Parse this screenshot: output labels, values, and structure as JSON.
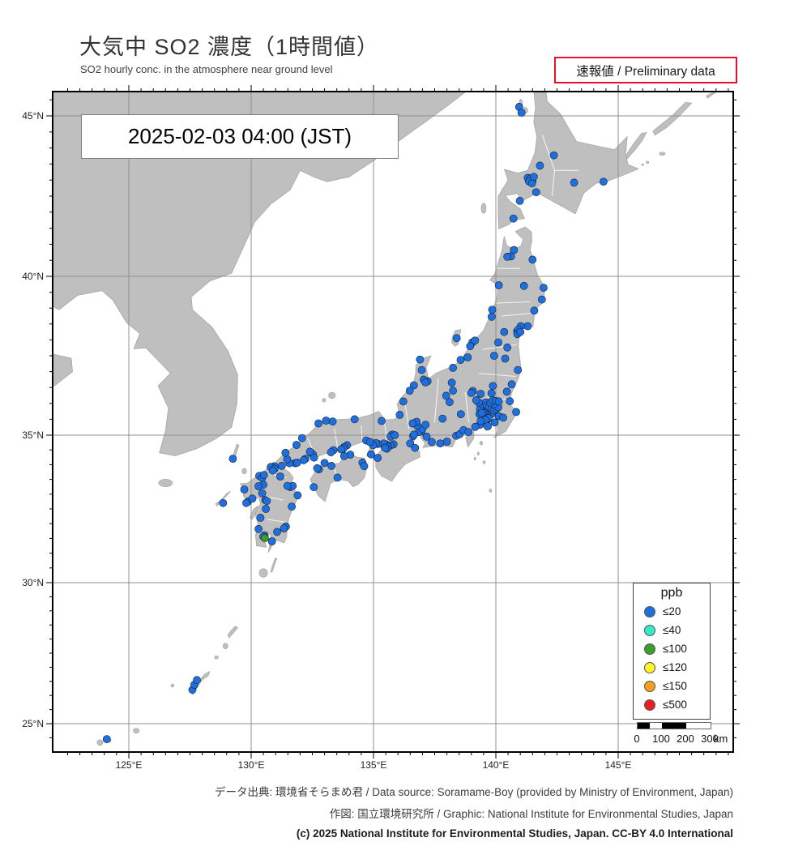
{
  "header": {
    "title": "大気中 SO2 濃度（1時間値）",
    "subtitle": "SO2 hourly conc. in the atmosphere near ground level",
    "preliminary": "速報値 / Preliminary data"
  },
  "map": {
    "timestamp": "2025-02-03  04:00 (JST)",
    "lat_labels": [
      {
        "label": "45°N",
        "lat": 45
      },
      {
        "label": "40°N",
        "lat": 40
      },
      {
        "label": "35°N",
        "lat": 35
      },
      {
        "label": "30°N",
        "lat": 30
      },
      {
        "label": "25°N",
        "lat": 25
      }
    ],
    "lon_labels": [
      {
        "label": "125°E",
        "lon": 125
      },
      {
        "label": "130°E",
        "lon": 130
      },
      {
        "label": "135°E",
        "lon": 135
      },
      {
        "label": "140°E",
        "lon": 140
      },
      {
        "label": "145°E",
        "lon": 145
      }
    ]
  },
  "legend": {
    "title": "ppb",
    "items": [
      {
        "label": "≤20",
        "color": "#1e6fe0"
      },
      {
        "label": "≤40",
        "color": "#35e8c8"
      },
      {
        "label": "≤100",
        "color": "#3aa02a"
      },
      {
        "label": "≤120",
        "color": "#fff32a"
      },
      {
        "label": "≤150",
        "color": "#f4a01c"
      },
      {
        "label": "≤500",
        "color": "#ec1c24"
      }
    ]
  },
  "scalebar": {
    "labels": [
      "0",
      "100",
      "200",
      "300"
    ],
    "unit": "km"
  },
  "footer": {
    "line1": "データ出典: 環境省そらまめ君 / Data source: Soramame-Boy (provided by Ministry of Environment, Japan)",
    "line2": "作図: 国立環境研究所 / Graphic: National Institute for Environmental Studies, Japan",
    "line3": "(c) 2025 National Institute for Environmental Studies, Japan. CC-BY 4.0 International"
  },
  "chart_data": {
    "type": "scatter",
    "title": "大気中 SO2 濃度（1時間値）",
    "unit": "ppb",
    "timestamp": "2025-02-03 04:00 (JST)",
    "lon_range": [
      121.9,
      149.7
    ],
    "lat_range": [
      23.9,
      45.77
    ],
    "grid": "on",
    "legend_position": "bottom-right",
    "thresholds": [
      {
        "label": "≤20",
        "color": "#1e6fe0"
      },
      {
        "label": "≤40",
        "color": "#35e8c8"
      },
      {
        "label": "≤100",
        "color": "#3aa02a"
      },
      {
        "label": "≤120",
        "color": "#fff32a"
      },
      {
        "label": "≤150",
        "color": "#f4a01c"
      },
      {
        "label": "≤500",
        "color": "#ec1c24"
      }
    ],
    "stations": {
      "le20": [
        [
          140.95,
          45.28
        ],
        [
          141.05,
          45.1
        ],
        [
          141.8,
          43.45
        ],
        [
          142.37,
          43.77
        ],
        [
          141.3,
          43.07
        ],
        [
          141.42,
          43.05
        ],
        [
          141.5,
          42.98
        ],
        [
          141.35,
          42.96
        ],
        [
          141.48,
          42.9
        ],
        [
          141.55,
          43.1
        ],
        [
          141.65,
          42.62
        ],
        [
          140.98,
          42.35
        ],
        [
          140.72,
          41.8
        ],
        [
          144.4,
          42.95
        ],
        [
          143.2,
          42.92
        ],
        [
          140.74,
          40.82
        ],
        [
          140.62,
          40.62
        ],
        [
          141.5,
          40.52
        ],
        [
          140.47,
          40.61
        ],
        [
          140.12,
          39.72
        ],
        [
          141.15,
          39.7
        ],
        [
          141.95,
          39.64
        ],
        [
          141.88,
          39.27
        ],
        [
          141.57,
          38.92
        ],
        [
          141.3,
          38.43
        ],
        [
          141.02,
          38.43
        ],
        [
          140.87,
          38.27
        ],
        [
          140.93,
          38.33
        ],
        [
          140.88,
          38.18
        ],
        [
          141.0,
          38.25
        ],
        [
          140.34,
          38.25
        ],
        [
          139.83,
          38.73
        ],
        [
          139.85,
          38.95
        ],
        [
          140.1,
          37.92
        ],
        [
          140.47,
          37.76
        ],
        [
          140.38,
          37.41
        ],
        [
          139.93,
          37.5
        ],
        [
          140.9,
          37.05
        ],
        [
          139.04,
          37.92
        ],
        [
          139.15,
          37.98
        ],
        [
          138.95,
          37.8
        ],
        [
          138.4,
          38.05
        ],
        [
          138.85,
          37.45
        ],
        [
          138.56,
          37.37
        ],
        [
          138.25,
          37.12
        ],
        [
          137.21,
          36.7
        ],
        [
          137.05,
          36.75
        ],
        [
          137.12,
          36.66
        ],
        [
          136.65,
          36.57
        ],
        [
          136.48,
          36.4
        ],
        [
          136.22,
          36.06
        ],
        [
          136.07,
          35.64
        ],
        [
          136.97,
          37.05
        ],
        [
          136.9,
          37.38
        ],
        [
          139.7,
          35.68
        ],
        [
          139.76,
          35.7
        ],
        [
          139.82,
          35.66
        ],
        [
          139.64,
          35.7
        ],
        [
          139.58,
          35.66
        ],
        [
          139.52,
          35.74
        ],
        [
          139.47,
          35.8
        ],
        [
          139.42,
          35.88
        ],
        [
          139.35,
          35.83
        ],
        [
          139.45,
          35.97
        ],
        [
          139.58,
          36.03
        ],
        [
          139.63,
          35.93
        ],
        [
          139.72,
          35.88
        ],
        [
          139.82,
          35.83
        ],
        [
          139.92,
          35.78
        ],
        [
          140.02,
          35.83
        ],
        [
          140.1,
          35.88
        ],
        [
          139.92,
          35.98
        ],
        [
          139.78,
          36.03
        ],
        [
          139.87,
          36.1
        ],
        [
          140.0,
          36.08
        ],
        [
          140.12,
          36.06
        ],
        [
          139.3,
          36.03
        ],
        [
          139.2,
          36.1
        ],
        [
          139.06,
          36.39
        ],
        [
          139.0,
          36.33
        ],
        [
          139.38,
          36.3
        ],
        [
          139.88,
          36.55
        ],
        [
          139.82,
          36.32
        ],
        [
          140.45,
          36.37
        ],
        [
          140.65,
          36.6
        ],
        [
          140.57,
          36.07
        ],
        [
          140.83,
          35.73
        ],
        [
          140.12,
          35.6
        ],
        [
          140.3,
          35.55
        ],
        [
          139.95,
          35.4
        ],
        [
          139.62,
          35.45
        ],
        [
          139.66,
          35.5
        ],
        [
          139.7,
          35.54
        ],
        [
          139.56,
          35.48
        ],
        [
          139.67,
          35.28
        ],
        [
          139.35,
          35.33
        ],
        [
          139.16,
          35.26
        ],
        [
          139.38,
          35.45
        ],
        [
          139.33,
          35.66
        ],
        [
          139.42,
          35.7
        ],
        [
          138.57,
          35.66
        ],
        [
          138.2,
          36.65
        ],
        [
          137.97,
          36.24
        ],
        [
          138.25,
          36.4
        ],
        [
          138.11,
          36.04
        ],
        [
          137.82,
          35.52
        ],
        [
          138.38,
          34.98
        ],
        [
          138.52,
          35.03
        ],
        [
          138.68,
          35.16
        ],
        [
          138.88,
          35.1
        ],
        [
          137.73,
          34.72
        ],
        [
          138.0,
          34.78
        ],
        [
          137.38,
          34.77
        ],
        [
          137.17,
          34.95
        ],
        [
          136.9,
          35.18
        ],
        [
          136.95,
          35.12
        ],
        [
          136.85,
          35.1
        ],
        [
          137.0,
          35.2
        ],
        [
          136.78,
          35.3
        ],
        [
          136.62,
          34.97
        ],
        [
          136.66,
          35.02
        ],
        [
          136.5,
          34.72
        ],
        [
          136.76,
          35.42
        ],
        [
          136.6,
          35.37
        ],
        [
          137.13,
          35.33
        ],
        [
          136.7,
          34.57
        ],
        [
          135.76,
          35.02
        ],
        [
          135.7,
          34.95
        ],
        [
          135.87,
          35.0
        ],
        [
          135.33,
          35.45
        ],
        [
          135.82,
          34.69
        ],
        [
          135.7,
          34.65
        ],
        [
          135.17,
          34.23
        ],
        [
          135.5,
          34.69
        ],
        [
          135.56,
          34.65
        ],
        [
          135.44,
          34.62
        ],
        [
          135.42,
          34.72
        ],
        [
          135.6,
          34.6
        ],
        [
          135.55,
          34.54
        ],
        [
          135.47,
          34.57
        ],
        [
          135.18,
          34.7
        ],
        [
          135.1,
          34.73
        ],
        [
          134.98,
          34.66
        ],
        [
          134.7,
          34.82
        ],
        [
          134.85,
          34.77
        ],
        [
          134.9,
          34.35
        ],
        [
          133.92,
          34.66
        ],
        [
          133.8,
          34.6
        ],
        [
          133.77,
          34.55
        ],
        [
          133.68,
          34.52
        ],
        [
          133.36,
          34.49
        ],
        [
          133.26,
          34.42
        ],
        [
          132.46,
          34.39
        ],
        [
          132.52,
          34.35
        ],
        [
          132.4,
          34.44
        ],
        [
          132.57,
          34.24
        ],
        [
          132.22,
          34.2
        ],
        [
          132.15,
          34.15
        ],
        [
          131.8,
          34.05
        ],
        [
          131.88,
          34.07
        ],
        [
          131.57,
          34.05
        ],
        [
          131.25,
          33.96
        ],
        [
          130.95,
          33.95
        ],
        [
          131.47,
          34.18
        ],
        [
          131.4,
          34.4
        ],
        [
          131.85,
          34.67
        ],
        [
          132.08,
          34.9
        ],
        [
          133.06,
          35.46
        ],
        [
          133.33,
          35.43
        ],
        [
          134.23,
          35.5
        ],
        [
          132.75,
          35.37
        ],
        [
          134.05,
          34.34
        ],
        [
          133.8,
          34.29
        ],
        [
          133.28,
          33.96
        ],
        [
          133.0,
          34.06
        ],
        [
          132.77,
          33.84
        ],
        [
          132.7,
          33.88
        ],
        [
          132.56,
          33.24
        ],
        [
          133.53,
          33.56
        ],
        [
          134.55,
          34.07
        ],
        [
          134.62,
          33.95
        ],
        [
          130.87,
          33.88
        ],
        [
          130.8,
          33.92
        ],
        [
          130.95,
          33.86
        ],
        [
          130.88,
          33.8
        ],
        [
          130.4,
          33.59
        ],
        [
          130.33,
          33.62
        ],
        [
          130.45,
          33.55
        ],
        [
          130.52,
          33.65
        ],
        [
          130.45,
          33.03
        ],
        [
          130.5,
          33.32
        ],
        [
          130.3,
          33.27
        ],
        [
          129.87,
          32.75
        ],
        [
          129.8,
          32.7
        ],
        [
          129.72,
          33.16
        ],
        [
          130.05,
          32.85
        ],
        [
          130.58,
          32.8
        ],
        [
          130.64,
          32.77
        ],
        [
          130.6,
          32.5
        ],
        [
          130.38,
          32.2
        ],
        [
          131.6,
          33.24
        ],
        [
          131.7,
          33.28
        ],
        [
          131.48,
          33.28
        ],
        [
          131.19,
          33.6
        ],
        [
          131.9,
          32.96
        ],
        [
          131.66,
          32.58
        ],
        [
          131.42,
          31.9
        ],
        [
          131.34,
          31.84
        ],
        [
          131.06,
          31.72
        ],
        [
          130.55,
          31.6
        ],
        [
          130.5,
          31.56
        ],
        [
          130.3,
          31.82
        ],
        [
          130.85,
          31.4
        ],
        [
          129.25,
          34.2
        ],
        [
          128.85,
          32.7
        ],
        [
          127.6,
          26.2
        ],
        [
          127.68,
          26.38
        ],
        [
          127.78,
          26.55
        ],
        [
          124.1,
          24.45
        ]
      ],
      "le100": [
        [
          130.56,
          31.51
        ]
      ]
    }
  }
}
